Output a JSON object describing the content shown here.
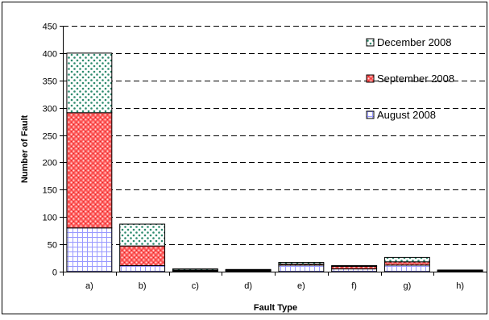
{
  "chart_data": {
    "type": "bar",
    "stacked": true,
    "xlabel": "Fault Type",
    "ylabel": "Number of Fault",
    "categories": [
      "a)",
      "b)",
      "c)",
      "d)",
      "e)",
      "f)",
      "g)",
      "h)"
    ],
    "ylim": [
      0,
      450
    ],
    "yticks": [
      0,
      50,
      100,
      150,
      200,
      250,
      300,
      350,
      400,
      450
    ],
    "grid": "horizontal dashed",
    "legend_position": "right",
    "series": [
      {
        "name": "August 2008",
        "values": [
          80,
          11,
          2,
          2,
          12,
          5,
          12,
          1
        ],
        "color": "#ccccff",
        "pattern": "grid"
      },
      {
        "name": "September 2008",
        "values": [
          211,
          36,
          1,
          1,
          2,
          5,
          6,
          1
        ],
        "color": "#ff5050",
        "pattern": "dots"
      },
      {
        "name": "December 2008",
        "values": [
          109,
          40,
          2,
          1,
          3,
          1,
          8,
          1
        ],
        "color": "#339966",
        "pattern": "dots"
      }
    ],
    "legend_order": [
      "December 2008",
      "September 2008",
      "August 2008"
    ]
  }
}
